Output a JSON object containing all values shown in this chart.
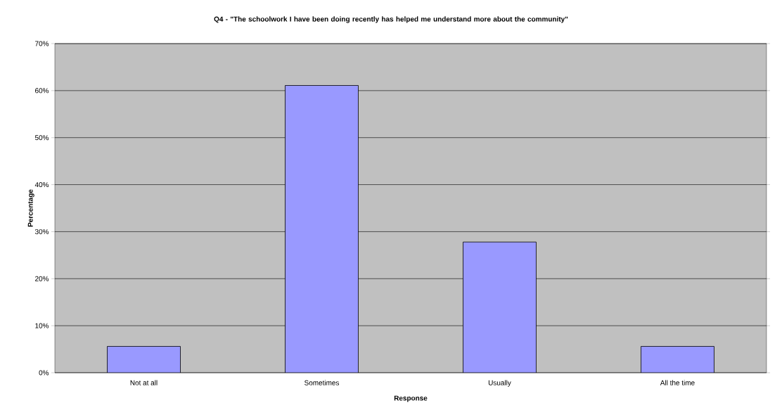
{
  "chart_data": {
    "type": "bar",
    "title": "Q4 - \"The schoolwork I have been doing recently has helped me understand more about the community\"",
    "xlabel": "Response",
    "ylabel": "Percentage",
    "categories": [
      "Not at all",
      "Sometimes",
      "Usually",
      "All the time"
    ],
    "values": [
      5.6,
      61.1,
      27.8,
      5.6
    ],
    "color": "#9999ff",
    "ylim": [
      0,
      70
    ],
    "yticks": [
      {
        "value": 0,
        "label": "0%"
      },
      {
        "value": 10,
        "label": "10%"
      },
      {
        "value": 20,
        "label": "20%"
      },
      {
        "value": 30,
        "label": "30%"
      },
      {
        "value": 40,
        "label": "40%"
      },
      {
        "value": 50,
        "label": "50%"
      },
      {
        "value": 60,
        "label": "60%"
      },
      {
        "value": 70,
        "label": "70%"
      }
    ],
    "grid": "y"
  }
}
